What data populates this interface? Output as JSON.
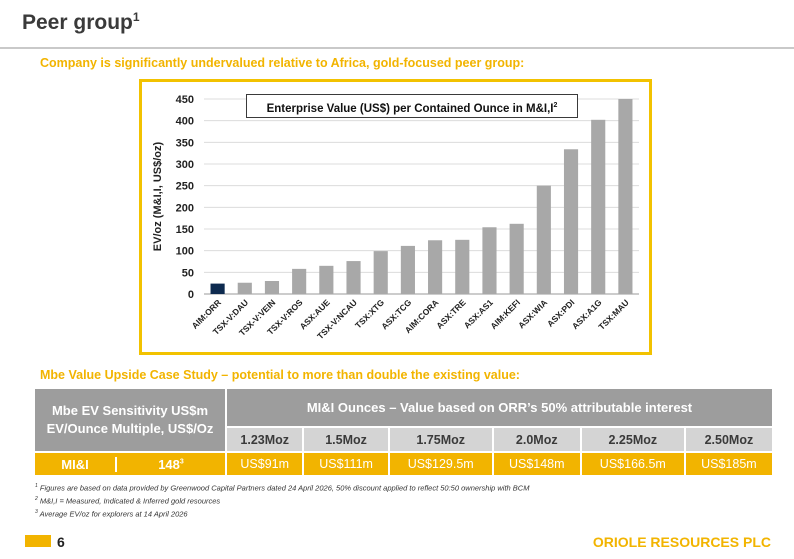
{
  "page": {
    "title": "Peer group",
    "title_sup": "1",
    "subtitle": "Company is significantly undervalued relative to Africa, gold-focused peer group:",
    "section2": "Mbe Value Upside Case Study – potential to more than double the existing value:",
    "page_number": "6",
    "company": "ORIOLE RESOURCES PLC"
  },
  "chart_data": {
    "type": "bar",
    "title": "Enterprise Value (US$) per Contained Ounce in M&I,I",
    "title_sup": "2",
    "xlabel": "",
    "ylabel": "EV/oz (M&I,I, US$/oz)",
    "ylim": [
      0,
      450
    ],
    "yticks": [
      0,
      50,
      100,
      150,
      200,
      250,
      300,
      350,
      400,
      450
    ],
    "grid": true,
    "categories": [
      "AIM:ORR",
      "TSX-V:DAU",
      "TSX-V:VEIN",
      "TSX-V:ROS",
      "ASX:AUE",
      "TSX-V:NCAU",
      "TSX:XTG",
      "ASX:TCG",
      "AIM:CORA",
      "ASX:TRE",
      "ASX:AS1",
      "AIM:KEFI",
      "ASX:WIA",
      "ASX:PDI",
      "ASX:A1G",
      "TSX:MAU"
    ],
    "values": [
      24,
      26,
      30,
      58,
      65,
      76,
      99,
      111,
      124,
      125,
      154,
      162,
      250,
      334,
      402,
      450
    ],
    "colors": {
      "highlight": "#0d2a4f",
      "bar": "#a8a8a8",
      "grid": "#dcdcdc"
    }
  },
  "table": {
    "left_header": "Mbe EV Sensitivity US$m EV/Ounce Multiple, US$/Oz",
    "top_header": "MI&I Ounces – Value based on ORR’s 50% attributable interest",
    "columns": [
      "1.23Moz",
      "1.5Moz",
      "1.75Moz",
      "2.0Moz",
      "2.25Moz",
      "2.50Moz"
    ],
    "row": {
      "label": "MI&I",
      "multiple": "148",
      "multiple_sup": "3",
      "values": [
        "US$91m",
        "US$111m",
        "US$129.5m",
        "US$148m",
        "US$166.5m",
        "US$185m"
      ]
    }
  },
  "footnotes": [
    {
      "sup": "1",
      "text": "Figures are based on data provided by Greenwood Capital Partners dated 24 April 2026, 50% discount applied to reflect 50:50 ownership with BCM"
    },
    {
      "sup": "2",
      "text": "M&I,I = Measured, Indicated & Inferred gold resources"
    },
    {
      "sup": "3",
      "text": "Average EV/oz for explorers at 14 April 2026"
    }
  ]
}
